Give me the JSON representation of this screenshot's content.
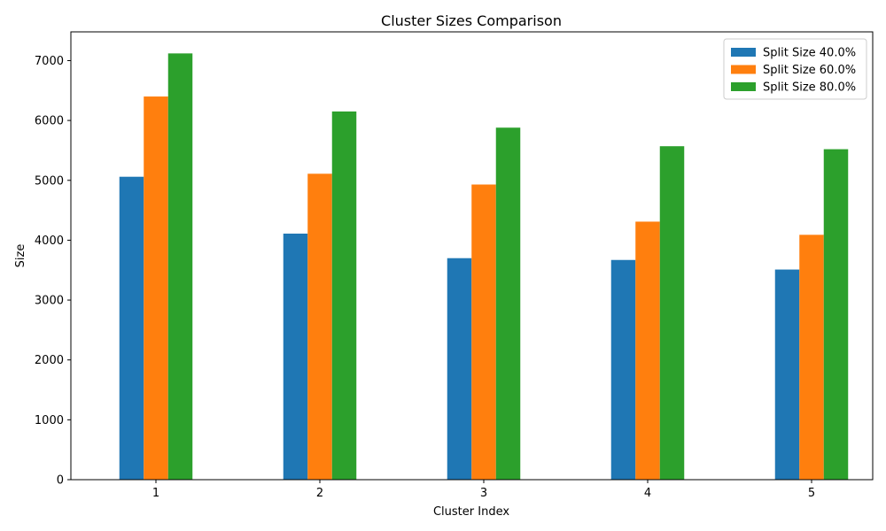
{
  "chart_data": {
    "type": "bar",
    "title": "Cluster Sizes Comparison",
    "xlabel": "Cluster Index",
    "ylabel": "Size",
    "categories": [
      "1",
      "2",
      "3",
      "4",
      "5"
    ],
    "series": [
      {
        "name": "Split Size 40.0%",
        "color": "#1f77b4",
        "values": [
          5060,
          4110,
          3700,
          3670,
          3510
        ]
      },
      {
        "name": "Split Size 60.0%",
        "color": "#ff7f0e",
        "values": [
          6400,
          5110,
          4930,
          4310,
          4090
        ]
      },
      {
        "name": "Split Size 80.0%",
        "color": "#2ca02c",
        "values": [
          7120,
          6150,
          5880,
          5570,
          5520
        ]
      }
    ],
    "ylim": [
      0,
      7480
    ],
    "yticks": [
      0,
      1000,
      2000,
      3000,
      4000,
      5000,
      6000,
      7000
    ],
    "legend_position": "top-right",
    "grid": false
  }
}
